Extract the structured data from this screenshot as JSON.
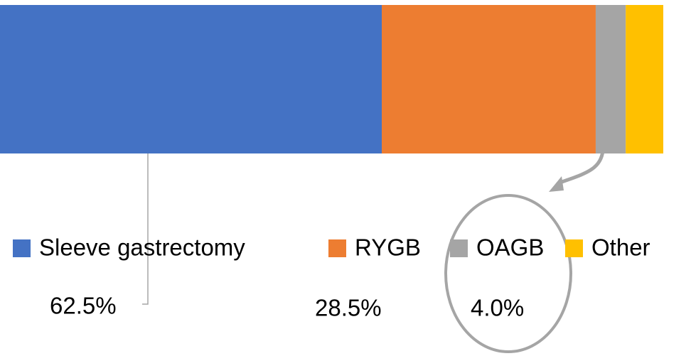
{
  "chart_data": {
    "type": "stacked-bar",
    "categories": [
      "Sleeve gastrectomy",
      "RYGB",
      "OAGB",
      "Other"
    ],
    "values": [
      62.5,
      28.5,
      4.0,
      5.0
    ],
    "value_labels": [
      "62.5%",
      "28.5%",
      "4.0%",
      null
    ],
    "colors": [
      "#4472c4",
      "#ed7d31",
      "#a5a5a5",
      "#ffc000"
    ],
    "legend": "bottom"
  }
}
